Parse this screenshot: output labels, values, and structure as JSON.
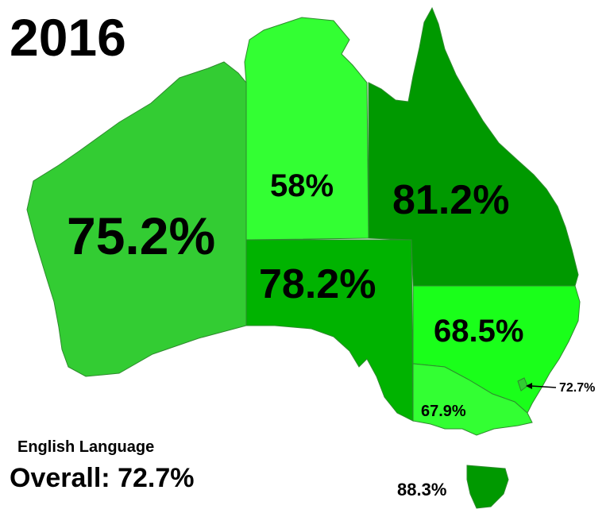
{
  "title": "2016",
  "subtitle": "English Language",
  "overall_label": "Overall:",
  "overall_value": "72.7%",
  "regions": {
    "wa": {
      "value": "75.2%",
      "color": "#33cc33"
    },
    "nt": {
      "value": "58%",
      "color": "#33ff33"
    },
    "qld": {
      "value": "81.2%",
      "color": "#009900"
    },
    "sa": {
      "value": "78.2%",
      "color": "#00b300"
    },
    "nsw": {
      "value": "68.5%",
      "color": "#1aff1a"
    },
    "vic": {
      "value": "67.9%",
      "color": "#33ff33"
    },
    "act": {
      "value": "72.7%",
      "color": "#33cc33"
    },
    "tas": {
      "value": "88.3%",
      "color": "#009900"
    }
  }
}
